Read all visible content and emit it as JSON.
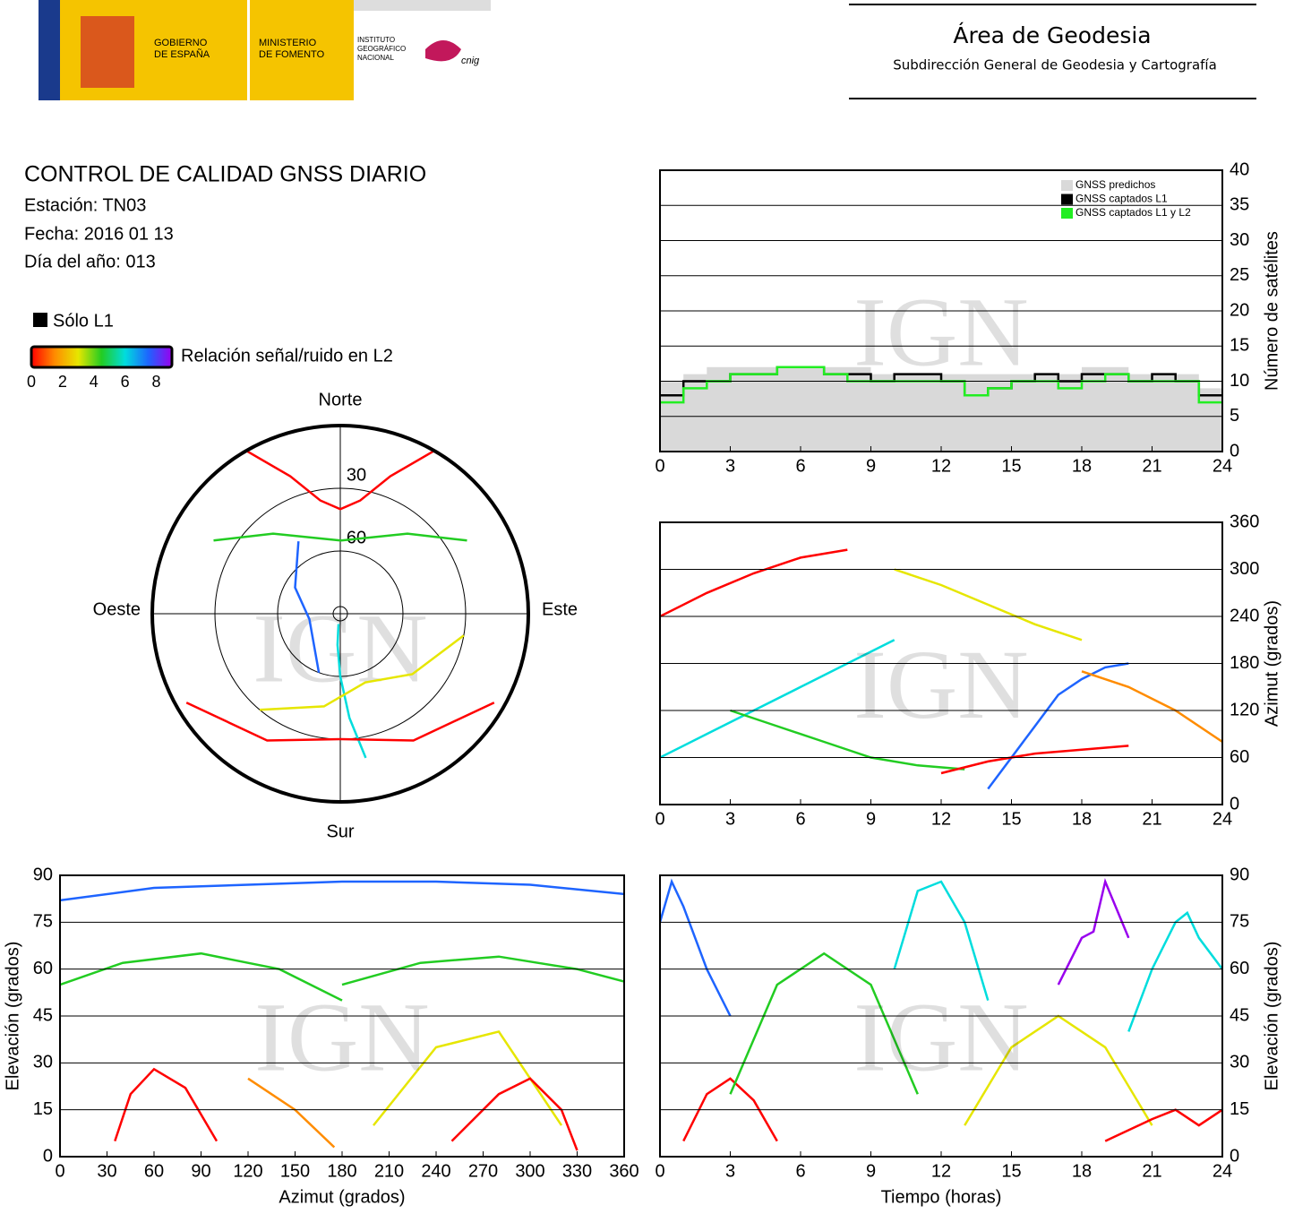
{
  "header": {
    "gobierno": [
      "GOBIERNO",
      "DE ESPAÑA"
    ],
    "ministerio": [
      "MINISTERIO",
      "DE FOMENTO"
    ],
    "instituto": [
      "INSTITUTO",
      "GEOGRÁFICO",
      "NACIONAL"
    ],
    "cnig": "cnig",
    "area": "Área de Geodesia",
    "subdireccion": "Subdirección General de Geodesia y Cartografía"
  },
  "report": {
    "title": "CONTROL DE CALIDAD GNSS DIARIO",
    "station": "Estación: TN03",
    "date": "Fecha: 2016 01 13",
    "doy": "Día del año: 013",
    "solo_l1": "Sólo L1",
    "snr_label": "Relación señal/ruido en L2",
    "snr_lim": [
      0,
      9
    ],
    "snr_ticks": [
      0,
      2,
      4,
      6,
      8
    ],
    "snr_colors": [
      "#ff0000",
      "#ff8c00",
      "#e6e600",
      "#22cc22",
      "#00dddd",
      "#1e64ff",
      "#9900ee"
    ]
  },
  "watermark": "IGN",
  "chart_data": [
    {
      "type": "polar",
      "north": "Norte",
      "south": "Sur",
      "east": "Este",
      "west": "Oeste",
      "rlim": [
        90,
        0
      ],
      "rticks": [
        30,
        60
      ],
      "series": [
        {
          "color": "#ff0000",
          "x": [
            330,
            340,
            350,
            0,
            10,
            20,
            30
          ],
          "values": [
            0,
            20,
            35,
            40,
            35,
            20,
            0
          ]
        },
        {
          "color": "#22cc22",
          "x": [
            300,
            320,
            0,
            40,
            60
          ],
          "values": [
            20,
            40,
            55,
            40,
            20
          ]
        },
        {
          "color": "#00dddd",
          "x": [
            170,
            175,
            180,
            185,
            190
          ],
          "values": [
            20,
            40,
            60,
            75,
            85
          ]
        },
        {
          "color": "#ff0000",
          "x": [
            120,
            150,
            180,
            210,
            240
          ],
          "values": [
            5,
            20,
            30,
            20,
            5
          ]
        },
        {
          "color": "#e6e600",
          "x": [
            100,
            130,
            160,
            190,
            220
          ],
          "values": [
            30,
            45,
            55,
            45,
            30
          ]
        },
        {
          "color": "#1e64ff",
          "x": [
            200,
            260,
            300,
            330
          ],
          "values": [
            60,
            75,
            65,
            50
          ]
        }
      ]
    },
    {
      "type": "step",
      "ylabel": "Número de satélites",
      "xlim": [
        0,
        24
      ],
      "xticks": [
        0,
        3,
        6,
        9,
        12,
        15,
        18,
        21,
        24
      ],
      "ylim": [
        0,
        40
      ],
      "yticks": [
        0,
        5,
        10,
        15,
        20,
        25,
        30,
        35,
        40
      ],
      "grid": true,
      "legend": "upper right",
      "x": [
        0,
        1,
        2,
        3,
        4,
        5,
        6,
        7,
        8,
        9,
        10,
        11,
        12,
        13,
        14,
        15,
        16,
        17,
        18,
        19,
        20,
        21,
        22,
        23
      ],
      "series": [
        {
          "name": "GNSS predichos",
          "color": "#d9d9d9",
          "style": "area",
          "values": [
            10,
            11,
            12,
            12,
            12,
            12,
            12,
            12,
            12,
            11,
            11,
            11,
            11,
            11,
            11,
            11,
            11,
            11,
            12,
            12,
            11,
            11,
            11,
            9
          ]
        },
        {
          "name": "GNSS captados L1",
          "color": "#000000",
          "style": "line",
          "values": [
            8,
            10,
            10,
            11,
            11,
            12,
            12,
            11,
            11,
            10,
            11,
            11,
            10,
            8,
            9,
            10,
            11,
            10,
            11,
            11,
            10,
            11,
            10,
            8
          ]
        },
        {
          "name": "GNSS captados L1 y L2",
          "color": "#22ee22",
          "style": "line",
          "values": [
            7,
            9,
            10,
            11,
            11,
            12,
            12,
            11,
            10,
            10,
            10,
            10,
            10,
            8,
            9,
            10,
            10,
            9,
            10,
            11,
            10,
            10,
            10,
            7
          ]
        }
      ]
    },
    {
      "type": "line",
      "ylabel": "Azimut (grados)",
      "xlim": [
        0,
        24
      ],
      "xticks": [
        0,
        3,
        6,
        9,
        12,
        15,
        18,
        21,
        24
      ],
      "ylim": [
        0,
        360
      ],
      "yticks": [
        0,
        60,
        120,
        180,
        240,
        300,
        360
      ],
      "grid": true,
      "series": [
        {
          "color": "#ff0000",
          "x": [
            0,
            2,
            4,
            6,
            8
          ],
          "values": [
            240,
            270,
            295,
            315,
            325
          ]
        },
        {
          "color": "#00dddd",
          "x": [
            0,
            2,
            4,
            6,
            8,
            10
          ],
          "values": [
            60,
            90,
            120,
            150,
            180,
            210
          ]
        },
        {
          "color": "#e6e600",
          "x": [
            10,
            12,
            14,
            16,
            18
          ],
          "values": [
            300,
            280,
            255,
            230,
            210
          ]
        },
        {
          "color": "#1e64ff",
          "x": [
            14,
            15,
            16,
            17,
            18,
            19,
            20
          ],
          "values": [
            20,
            60,
            100,
            140,
            160,
            175,
            180
          ]
        },
        {
          "color": "#ff8c00",
          "x": [
            18,
            20,
            22,
            24
          ],
          "values": [
            170,
            150,
            120,
            80
          ]
        },
        {
          "color": "#22cc22",
          "x": [
            3,
            5,
            7,
            9,
            11,
            13
          ],
          "values": [
            120,
            100,
            80,
            60,
            50,
            45
          ]
        },
        {
          "color": "#ff0000",
          "x": [
            12,
            14,
            16,
            18,
            20
          ],
          "values": [
            40,
            55,
            65,
            70,
            75
          ]
        }
      ]
    },
    {
      "type": "line",
      "xlabel": "Azimut (grados)",
      "ylabel": "Elevación (grados)",
      "yside": "left",
      "xlim": [
        0,
        360
      ],
      "xticks": [
        0,
        30,
        60,
        90,
        120,
        150,
        180,
        210,
        240,
        270,
        300,
        330,
        360
      ],
      "ylim": [
        0,
        90
      ],
      "yticks": [
        0,
        15,
        30,
        45,
        60,
        75,
        90
      ],
      "grid": true,
      "series": [
        {
          "color": "#ff0000",
          "x": [
            35,
            45,
            60,
            80,
            100
          ],
          "values": [
            5,
            20,
            28,
            22,
            5
          ]
        },
        {
          "color": "#22cc22",
          "x": [
            0,
            40,
            90,
            140,
            180
          ],
          "values": [
            55,
            62,
            65,
            60,
            50
          ]
        },
        {
          "color": "#1e64ff",
          "x": [
            0,
            60,
            120,
            180,
            240,
            300,
            360
          ],
          "values": [
            82,
            86,
            87,
            88,
            88,
            87,
            84
          ]
        },
        {
          "color": "#e6e600",
          "x": [
            200,
            240,
            280,
            320
          ],
          "values": [
            10,
            35,
            40,
            10
          ]
        },
        {
          "color": "#ff0000",
          "x": [
            250,
            280,
            300,
            320,
            330
          ],
          "values": [
            5,
            20,
            25,
            15,
            2
          ]
        },
        {
          "color": "#22cc22",
          "x": [
            180,
            230,
            280,
            330,
            360
          ],
          "values": [
            55,
            62,
            64,
            60,
            56
          ]
        },
        {
          "color": "#ff8c00",
          "x": [
            120,
            150,
            175
          ],
          "values": [
            25,
            15,
            3
          ]
        }
      ]
    },
    {
      "type": "line",
      "xlabel": "Tiempo (horas)",
      "ylabel": "Elevación (grados)",
      "xlim": [
        0,
        24
      ],
      "xticks": [
        0,
        3,
        6,
        9,
        12,
        15,
        18,
        21,
        24
      ],
      "ylim": [
        0,
        90
      ],
      "yticks": [
        0,
        15,
        30,
        45,
        60,
        75,
        90
      ],
      "grid": true,
      "series": [
        {
          "color": "#1e64ff",
          "x": [
            0,
            0.5,
            1,
            2,
            3
          ],
          "values": [
            75,
            88,
            80,
            60,
            45
          ]
        },
        {
          "color": "#ff0000",
          "x": [
            1,
            2,
            3,
            4,
            5
          ],
          "values": [
            5,
            20,
            25,
            18,
            5
          ]
        },
        {
          "color": "#22cc22",
          "x": [
            3,
            5,
            7,
            9,
            11
          ],
          "values": [
            20,
            55,
            65,
            55,
            20
          ]
        },
        {
          "color": "#00dddd",
          "x": [
            10,
            11,
            12,
            13,
            14
          ],
          "values": [
            60,
            85,
            88,
            75,
            50
          ]
        },
        {
          "color": "#e6e600",
          "x": [
            13,
            15,
            17,
            19,
            21
          ],
          "values": [
            10,
            35,
            45,
            35,
            10
          ]
        },
        {
          "color": "#9900ee",
          "x": [
            17,
            18,
            18.5,
            19,
            20
          ],
          "values": [
            55,
            70,
            72,
            88,
            70
          ]
        },
        {
          "color": "#ff0000",
          "x": [
            19,
            21,
            22,
            23,
            24
          ],
          "values": [
            5,
            12,
            15,
            10,
            15
          ]
        },
        {
          "color": "#00dddd",
          "x": [
            20,
            21,
            22,
            22.5,
            23,
            24
          ],
          "values": [
            40,
            60,
            75,
            78,
            70,
            60
          ]
        }
      ]
    }
  ]
}
